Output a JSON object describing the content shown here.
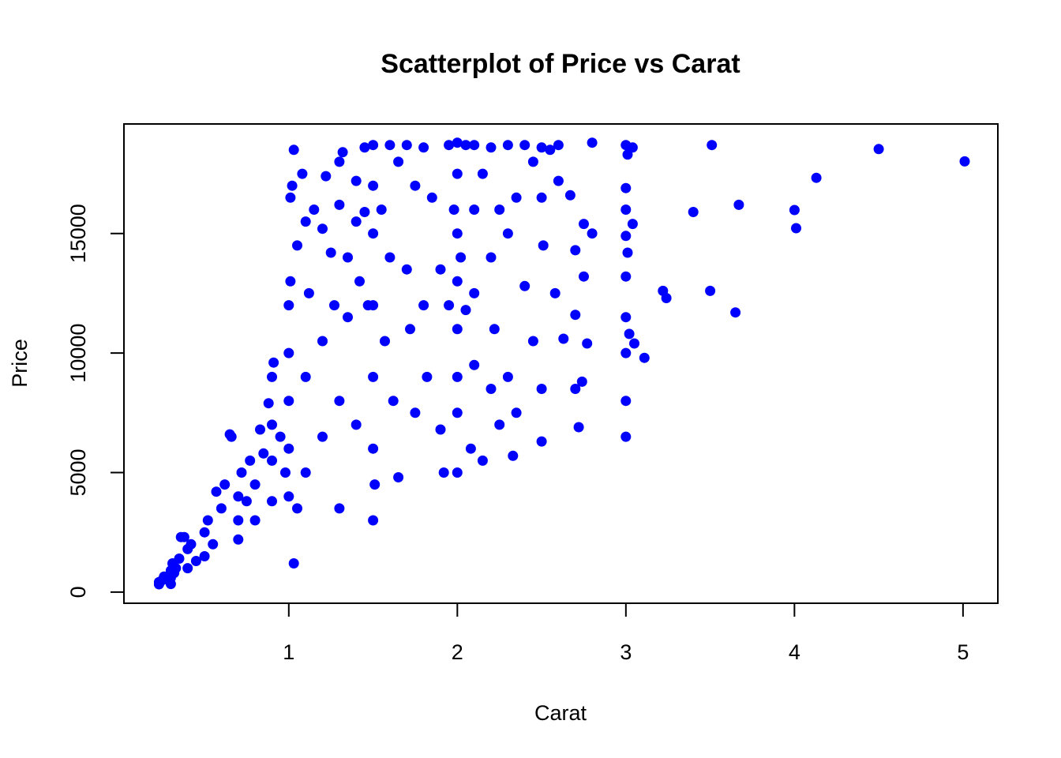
{
  "chart_data": {
    "type": "scatter",
    "title": "Scatterplot of Price vs Carat",
    "xlabel": "Carat",
    "ylabel": "Price",
    "xlim": [
      0.2,
      5.01
    ],
    "ylim": [
      326,
      18823
    ],
    "x_ticks": [
      1,
      2,
      3,
      4,
      5
    ],
    "y_ticks": [
      0,
      5000,
      10000,
      15000
    ],
    "grid": false,
    "legend": "none",
    "marker_color": "#0000ff",
    "series": [
      {
        "values": [
          [
            0.23,
            326
          ],
          [
            0.23,
            420
          ],
          [
            0.25,
            500
          ],
          [
            0.26,
            650
          ],
          [
            0.3,
            340
          ],
          [
            0.3,
            600
          ],
          [
            0.3,
            900
          ],
          [
            0.31,
            1200
          ],
          [
            0.32,
            800
          ],
          [
            0.33,
            1000
          ],
          [
            0.35,
            1400
          ],
          [
            0.36,
            2300
          ],
          [
            0.38,
            2300
          ],
          [
            0.4,
            1000
          ],
          [
            0.4,
            1800
          ],
          [
            0.42,
            2000
          ],
          [
            0.45,
            1300
          ],
          [
            0.5,
            1500
          ],
          [
            0.5,
            2500
          ],
          [
            0.52,
            3000
          ],
          [
            0.55,
            2000
          ],
          [
            0.57,
            4200
          ],
          [
            0.6,
            3500
          ],
          [
            0.62,
            4500
          ],
          [
            0.65,
            6600
          ],
          [
            0.66,
            6500
          ],
          [
            0.7,
            2200
          ],
          [
            0.7,
            3000
          ],
          [
            0.7,
            4000
          ],
          [
            0.72,
            5000
          ],
          [
            0.75,
            3800
          ],
          [
            0.77,
            5500
          ],
          [
            0.8,
            3000
          ],
          [
            0.8,
            4500
          ],
          [
            0.83,
            6800
          ],
          [
            0.85,
            5800
          ],
          [
            0.88,
            7900
          ],
          [
            0.9,
            3800
          ],
          [
            0.9,
            5500
          ],
          [
            0.9,
            7000
          ],
          [
            0.9,
            9000
          ],
          [
            0.91,
            9600
          ],
          [
            0.95,
            6500
          ],
          [
            0.98,
            5000
          ],
          [
            1.0,
            4000
          ],
          [
            1.0,
            6000
          ],
          [
            1.0,
            8000
          ],
          [
            1.0,
            10000
          ],
          [
            1.0,
            12000
          ],
          [
            1.01,
            13000
          ],
          [
            1.01,
            16500
          ],
          [
            1.02,
            17000
          ],
          [
            1.03,
            18500
          ],
          [
            1.03,
            1200
          ],
          [
            1.05,
            14500
          ],
          [
            1.05,
            3500
          ],
          [
            1.08,
            17500
          ],
          [
            1.1,
            15500
          ],
          [
            1.1,
            5000
          ],
          [
            1.1,
            9000
          ],
          [
            1.12,
            12500
          ],
          [
            1.15,
            16000
          ],
          [
            1.2,
            15200
          ],
          [
            1.2,
            6500
          ],
          [
            1.2,
            10500
          ],
          [
            1.22,
            17400
          ],
          [
            1.25,
            14200
          ],
          [
            1.27,
            12000
          ],
          [
            1.3,
            18000
          ],
          [
            1.3,
            16200
          ],
          [
            1.3,
            3500
          ],
          [
            1.3,
            8000
          ],
          [
            1.32,
            18400
          ],
          [
            1.35,
            14000
          ],
          [
            1.35,
            11500
          ],
          [
            1.4,
            17200
          ],
          [
            1.4,
            15500
          ],
          [
            1.4,
            7000
          ],
          [
            1.42,
            13000
          ],
          [
            1.45,
            18600
          ],
          [
            1.45,
            15900
          ],
          [
            1.47,
            12000
          ],
          [
            1.5,
            18700
          ],
          [
            1.5,
            17000
          ],
          [
            1.5,
            15000
          ],
          [
            1.5,
            12000
          ],
          [
            1.5,
            9000
          ],
          [
            1.5,
            6000
          ],
          [
            1.5,
            3000
          ],
          [
            1.51,
            4500
          ],
          [
            1.55,
            16000
          ],
          [
            1.57,
            10500
          ],
          [
            1.6,
            18700
          ],
          [
            1.6,
            14000
          ],
          [
            1.62,
            8000
          ],
          [
            1.65,
            18000
          ],
          [
            1.65,
            4800
          ],
          [
            1.7,
            18700
          ],
          [
            1.7,
            13500
          ],
          [
            1.72,
            11000
          ],
          [
            1.75,
            17000
          ],
          [
            1.75,
            7500
          ],
          [
            1.8,
            18600
          ],
          [
            1.8,
            12000
          ],
          [
            1.82,
            9000
          ],
          [
            1.85,
            16500
          ],
          [
            1.9,
            13500
          ],
          [
            1.9,
            6800
          ],
          [
            1.92,
            5000
          ],
          [
            1.95,
            18700
          ],
          [
            1.95,
            12000
          ],
          [
            1.98,
            16000
          ],
          [
            2.0,
            18800
          ],
          [
            2.0,
            17500
          ],
          [
            2.0,
            15000
          ],
          [
            2.0,
            13000
          ],
          [
            2.0,
            11000
          ],
          [
            2.0,
            9000
          ],
          [
            2.0,
            7500
          ],
          [
            2.0,
            5000
          ],
          [
            2.02,
            14000
          ],
          [
            2.05,
            18700
          ],
          [
            2.05,
            11800
          ],
          [
            2.08,
            6000
          ],
          [
            2.1,
            18700
          ],
          [
            2.1,
            16000
          ],
          [
            2.1,
            12500
          ],
          [
            2.1,
            9500
          ],
          [
            2.15,
            17500
          ],
          [
            2.15,
            5500
          ],
          [
            2.2,
            18600
          ],
          [
            2.2,
            14000
          ],
          [
            2.2,
            8500
          ],
          [
            2.22,
            11000
          ],
          [
            2.25,
            16000
          ],
          [
            2.25,
            7000
          ],
          [
            2.3,
            18700
          ],
          [
            2.3,
            15000
          ],
          [
            2.3,
            9000
          ],
          [
            2.33,
            5700
          ],
          [
            2.35,
            16500
          ],
          [
            2.35,
            7500
          ],
          [
            2.4,
            18700
          ],
          [
            2.4,
            12800
          ],
          [
            2.45,
            18000
          ],
          [
            2.45,
            10500
          ],
          [
            2.5,
            18600
          ],
          [
            2.5,
            16500
          ],
          [
            2.5,
            8500
          ],
          [
            2.5,
            6300
          ],
          [
            2.51,
            14500
          ],
          [
            2.55,
            18500
          ],
          [
            2.58,
            12500
          ],
          [
            2.6,
            18700
          ],
          [
            2.6,
            17200
          ],
          [
            2.63,
            10600
          ],
          [
            2.67,
            16600
          ],
          [
            2.72,
            6900
          ],
          [
            2.74,
            8800
          ],
          [
            2.75,
            13200
          ],
          [
            2.75,
            15400
          ],
          [
            2.77,
            10400
          ],
          [
            2.8,
            18800
          ],
          [
            2.8,
            15000
          ],
          [
            2.7,
            14300
          ],
          [
            2.7,
            11600
          ],
          [
            2.7,
            8500
          ],
          [
            3.0,
            18700
          ],
          [
            3.0,
            16900
          ],
          [
            3.0,
            16000
          ],
          [
            3.0,
            14900
          ],
          [
            3.0,
            13200
          ],
          [
            3.0,
            11500
          ],
          [
            3.0,
            10000
          ],
          [
            3.0,
            8000
          ],
          [
            3.0,
            6500
          ],
          [
            3.01,
            18300
          ],
          [
            3.01,
            14200
          ],
          [
            3.02,
            10800
          ],
          [
            3.04,
            18600
          ],
          [
            3.04,
            15400
          ],
          [
            3.05,
            10400
          ],
          [
            3.11,
            9800
          ],
          [
            3.22,
            12600
          ],
          [
            3.24,
            12300
          ],
          [
            3.4,
            15900
          ],
          [
            3.5,
            12600
          ],
          [
            3.51,
            18700
          ],
          [
            3.65,
            11700
          ],
          [
            3.67,
            16200
          ],
          [
            4.0,
            15984
          ],
          [
            4.01,
            15223
          ],
          [
            4.13,
            17329
          ],
          [
            4.5,
            18531
          ],
          [
            5.01,
            18018
          ]
        ]
      }
    ]
  }
}
